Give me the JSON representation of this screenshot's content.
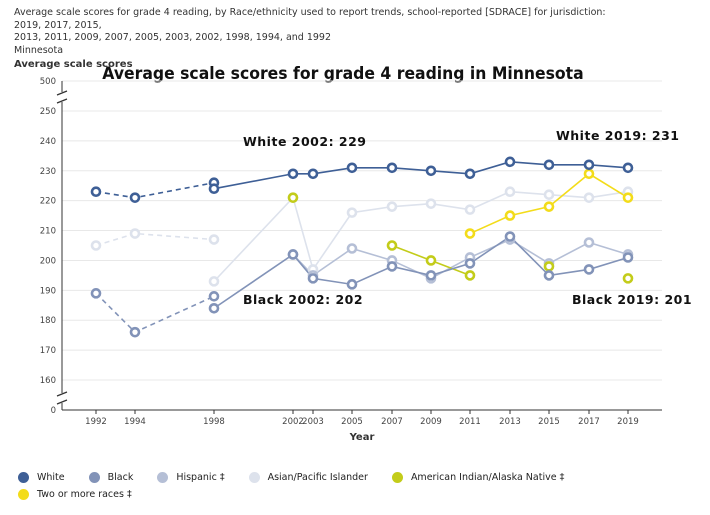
{
  "caption": {
    "line1": "Average scale scores for grade 4 reading, by Race/ethnicity used to report trends, school-reported [SDRACE] for jurisdiction: 2019, 2017, 2015,",
    "line2": "2013, 2011, 2009, 2007, 2005, 2003, 2002, 1998, 1994, and 1992",
    "line3": "Minnesota"
  },
  "chart_data": {
    "type": "line",
    "title": "Average scale scores for grade 4 reading in Minnesota",
    "ylabel": "Average scale scores",
    "xlabel": "Year",
    "x": [
      1992,
      1994,
      1998,
      2002,
      2003,
      2005,
      2007,
      2009,
      2011,
      2013,
      2015,
      2017,
      2019
    ],
    "x_tick_labels": [
      "1992",
      "1994",
      "1998",
      "2002",
      "2003",
      "2005",
      "2007",
      "2009",
      "2011",
      "2013",
      "2015",
      "2017",
      "2019"
    ],
    "y_ticks": [
      160,
      170,
      180,
      190,
      200,
      210,
      220,
      230,
      240,
      250
    ],
    "y_top_tick": 500,
    "y_bottom_tick": 0,
    "ylim": [
      155,
      255
    ],
    "axis_break": true,
    "grid": true,
    "series": [
      {
        "name": "White",
        "color": "#3e5f96",
        "accommodations_excluded": [
          223,
          221,
          226
        ],
        "accommodations_excluded_years": [
          1992,
          1994,
          1998
        ],
        "points": [
          [
            1998,
            224
          ],
          [
            2002,
            229
          ],
          [
            2003,
            229
          ],
          [
            2005,
            231
          ],
          [
            2007,
            231
          ],
          [
            2009,
            230
          ],
          [
            2011,
            229
          ],
          [
            2013,
            233
          ],
          [
            2015,
            232
          ],
          [
            2017,
            232
          ],
          [
            2019,
            231
          ]
        ]
      },
      {
        "name": "Black",
        "color": "#8293b8",
        "accommodations_excluded": [
          189,
          176,
          188
        ],
        "accommodations_excluded_years": [
          1992,
          1994,
          1998
        ],
        "points": [
          [
            1998,
            184
          ],
          [
            2002,
            202
          ],
          [
            2003,
            194
          ],
          [
            2005,
            192
          ],
          [
            2007,
            198
          ],
          [
            2009,
            195
          ],
          [
            2011,
            199
          ],
          [
            2013,
            208
          ],
          [
            2015,
            195
          ],
          [
            2017,
            197
          ],
          [
            2019,
            201
          ]
        ]
      },
      {
        "name": "Hispanic ‡",
        "color": "#b5bfd6",
        "points": [
          [
            2002,
            202
          ],
          [
            2003,
            195
          ],
          [
            2005,
            204
          ],
          [
            2007,
            200
          ],
          [
            2009,
            194
          ],
          [
            2011,
            201
          ],
          [
            2013,
            207
          ],
          [
            2015,
            199
          ],
          [
            2017,
            206
          ],
          [
            2019,
            202
          ]
        ]
      },
      {
        "name": "Asian/Pacific Islander",
        "color": "#dde2ec",
        "accommodations_excluded": [
          205,
          209,
          207
        ],
        "accommodations_excluded_years": [
          1992,
          1994,
          1998
        ],
        "points": [
          [
            1998,
            193
          ],
          [
            2002,
            221
          ],
          [
            2003,
            197
          ],
          [
            2005,
            216
          ],
          [
            2007,
            218
          ],
          [
            2009,
            219
          ],
          [
            2011,
            217
          ],
          [
            2013,
            223
          ],
          [
            2015,
            222
          ],
          [
            2017,
            221
          ],
          [
            2019,
            223
          ]
        ]
      },
      {
        "name": "American Indian/Alaska Native ‡",
        "color": "#c3cc1a",
        "points": [
          [
            2002,
            221
          ],
          [
            2007,
            205
          ],
          [
            2009,
            200
          ],
          [
            2011,
            195
          ],
          [
            2015,
            198
          ],
          [
            2019,
            194
          ]
        ]
      },
      {
        "name": "Two or more races ‡",
        "color": "#f3dc1a",
        "points": [
          [
            2011,
            209
          ],
          [
            2013,
            215
          ],
          [
            2015,
            218
          ],
          [
            2017,
            229
          ],
          [
            2019,
            221
          ]
        ]
      }
    ],
    "annotations": [
      {
        "text": "White 2002: 229",
        "x": 2002,
        "y": 229
      },
      {
        "text": "White 2019: 231",
        "x": 2019,
        "y": 231
      },
      {
        "text": "Black 2002: 202",
        "x": 2002,
        "y": 202
      },
      {
        "text": "Black 2019: 201",
        "x": 2019,
        "y": 201
      }
    ]
  },
  "legend": {
    "items": [
      {
        "label": "White",
        "color": "#3e5f96"
      },
      {
        "label": "Black",
        "color": "#8293b8"
      },
      {
        "label": "Hispanic ‡",
        "color": "#b5bfd6"
      },
      {
        "label": "Asian/Pacific Islander",
        "color": "#dde2ec"
      },
      {
        "label": "American Indian/Alaska Native ‡",
        "color": "#c3cc1a"
      },
      {
        "label": "Two or more races ‡",
        "color": "#f3dc1a"
      }
    ]
  }
}
